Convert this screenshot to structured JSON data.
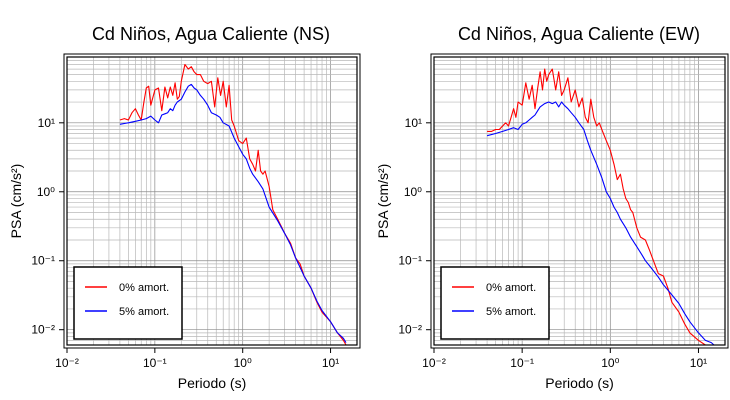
{
  "chart_data": [
    {
      "type": "line",
      "title": "Cd Niños, Agua Caliente (NS)",
      "xlabel": "Periodo (s)",
      "ylabel": "PSA (cm/s²)",
      "xscale": "log",
      "yscale": "log",
      "xlim": [
        0.01,
        20
      ],
      "ylim": [
        0.006,
        90
      ],
      "grid": true,
      "legend_position": "bottom-left",
      "x_tick_labels": [
        "10⁻²",
        "10⁻¹",
        "10⁰",
        "10¹"
      ],
      "y_tick_labels": [
        "10⁻²",
        "10⁻¹",
        "10⁰",
        "10¹"
      ],
      "series": [
        {
          "name": "0% amort.",
          "color": "#ff0000",
          "x": [
            0.04,
            0.045,
            0.05,
            0.055,
            0.06,
            0.065,
            0.07,
            0.075,
            0.08,
            0.085,
            0.09,
            0.1,
            0.11,
            0.12,
            0.13,
            0.14,
            0.15,
            0.16,
            0.17,
            0.18,
            0.19,
            0.2,
            0.22,
            0.24,
            0.26,
            0.28,
            0.3,
            0.33,
            0.36,
            0.4,
            0.44,
            0.48,
            0.52,
            0.56,
            0.6,
            0.65,
            0.7,
            0.75,
            0.8,
            0.9,
            1.0,
            1.1,
            1.2,
            1.3,
            1.4,
            1.5,
            1.6,
            1.7,
            1.8,
            2.0,
            2.2,
            2.5,
            2.8,
            3.0,
            3.5,
            4.0,
            4.5,
            5.0,
            6.0,
            7.0,
            8.0,
            10.0,
            12.0,
            14.0,
            15.0
          ],
          "values": [
            11,
            11.5,
            11,
            14,
            16,
            13,
            11,
            20,
            32,
            34,
            18,
            30,
            32,
            15,
            33,
            23,
            33,
            25,
            38,
            22,
            24,
            40,
            70,
            60,
            65,
            55,
            50,
            50,
            40,
            37,
            40,
            17,
            45,
            25,
            40,
            17,
            35,
            11,
            9,
            5.5,
            5.0,
            6.0,
            3.0,
            2.5,
            2.0,
            4.0,
            2.0,
            1.8,
            2.0,
            1.2,
            0.55,
            0.4,
            0.3,
            0.25,
            0.18,
            0.11,
            0.09,
            0.06,
            0.04,
            0.025,
            0.018,
            0.013,
            0.009,
            0.007,
            0.006
          ]
        },
        {
          "name": "5% amort.",
          "color": "#0000ff",
          "x": [
            0.04,
            0.05,
            0.06,
            0.07,
            0.08,
            0.09,
            0.1,
            0.11,
            0.12,
            0.13,
            0.14,
            0.15,
            0.16,
            0.17,
            0.18,
            0.2,
            0.22,
            0.24,
            0.26,
            0.28,
            0.3,
            0.33,
            0.36,
            0.4,
            0.44,
            0.5,
            0.55,
            0.6,
            0.7,
            0.8,
            0.9,
            1.0,
            1.1,
            1.2,
            1.3,
            1.5,
            1.7,
            2.0,
            2.3,
            2.5,
            3.0,
            3.5,
            4.0,
            5.0,
            6.0,
            7.0,
            8.0,
            10.0,
            12.0,
            14.0,
            15.0
          ],
          "values": [
            9.5,
            10,
            10.5,
            11,
            11.5,
            12.5,
            11,
            10,
            13,
            13.5,
            14,
            16,
            15,
            18,
            20,
            22,
            28,
            34,
            36,
            32,
            30,
            25,
            22,
            18,
            14,
            13,
            12,
            10,
            9,
            6,
            4.5,
            3.5,
            3.0,
            2.2,
            1.8,
            1.4,
            1.1,
            0.6,
            0.45,
            0.38,
            0.25,
            0.17,
            0.11,
            0.06,
            0.04,
            0.026,
            0.019,
            0.013,
            0.009,
            0.0075,
            0.0065
          ]
        }
      ]
    },
    {
      "type": "line",
      "title": "Cd Niños, Agua Caliente (EW)",
      "xlabel": "Periodo (s)",
      "ylabel": "PSA (cm/s²)",
      "xscale": "log",
      "yscale": "log",
      "xlim": [
        0.01,
        20
      ],
      "ylim": [
        0.006,
        90
      ],
      "grid": true,
      "legend_position": "bottom-left",
      "x_tick_labels": [
        "10⁻²",
        "10⁻¹",
        "10⁰",
        "10¹"
      ],
      "y_tick_labels": [
        "10⁻²",
        "10⁻¹",
        "10⁰",
        "10¹"
      ],
      "series": [
        {
          "name": "0% amort.",
          "color": "#ff0000",
          "x": [
            0.04,
            0.045,
            0.05,
            0.055,
            0.06,
            0.065,
            0.07,
            0.075,
            0.08,
            0.085,
            0.09,
            0.1,
            0.11,
            0.12,
            0.13,
            0.14,
            0.15,
            0.16,
            0.17,
            0.18,
            0.19,
            0.2,
            0.22,
            0.24,
            0.26,
            0.28,
            0.3,
            0.33,
            0.36,
            0.4,
            0.44,
            0.48,
            0.52,
            0.56,
            0.6,
            0.65,
            0.7,
            0.75,
            0.8,
            0.9,
            1.0,
            1.1,
            1.2,
            1.3,
            1.4,
            1.5,
            1.6,
            1.7,
            1.8,
            2.0,
            2.2,
            2.5,
            2.8,
            3.0,
            3.5,
            4.0,
            4.5,
            5.0,
            6.0,
            7.0,
            8.0,
            10.0,
            12.0,
            14.0,
            15.0
          ],
          "values": [
            7.5,
            7.5,
            8,
            8,
            9,
            10,
            9,
            12,
            16,
            12,
            20,
            18,
            38,
            22,
            35,
            16,
            32,
            55,
            30,
            60,
            40,
            50,
            60,
            30,
            55,
            25,
            30,
            45,
            20,
            30,
            17,
            23,
            12,
            10,
            22,
            12,
            9,
            10,
            8,
            5.5,
            4.0,
            2.5,
            1.5,
            1.8,
            1.1,
            0.8,
            0.7,
            0.55,
            0.5,
            0.3,
            0.22,
            0.2,
            0.14,
            0.11,
            0.065,
            0.06,
            0.04,
            0.025,
            0.018,
            0.012,
            0.009,
            0.007,
            0.006,
            0.006,
            0.006
          ]
        },
        {
          "name": "5% amort.",
          "color": "#0000ff",
          "x": [
            0.04,
            0.05,
            0.06,
            0.07,
            0.08,
            0.09,
            0.1,
            0.11,
            0.12,
            0.13,
            0.14,
            0.15,
            0.16,
            0.17,
            0.18,
            0.2,
            0.22,
            0.24,
            0.26,
            0.28,
            0.3,
            0.33,
            0.36,
            0.4,
            0.44,
            0.5,
            0.55,
            0.6,
            0.7,
            0.8,
            0.9,
            1.0,
            1.1,
            1.2,
            1.3,
            1.5,
            1.7,
            2.0,
            2.3,
            2.5,
            3.0,
            3.5,
            4.0,
            5.0,
            6.0,
            7.0,
            8.0,
            10.0,
            12.0,
            14.0,
            15.0
          ],
          "values": [
            6.5,
            7,
            7.5,
            8,
            8.5,
            8,
            9.5,
            10,
            11,
            12,
            13,
            15,
            17,
            18,
            19,
            20,
            19,
            20,
            17,
            20,
            18,
            16,
            14,
            12,
            10,
            8,
            5.5,
            4,
            2.5,
            1.6,
            1.0,
            0.8,
            0.6,
            0.5,
            0.4,
            0.3,
            0.22,
            0.16,
            0.12,
            0.1,
            0.075,
            0.058,
            0.045,
            0.032,
            0.024,
            0.017,
            0.013,
            0.009,
            0.007,
            0.0065,
            0.006
          ]
        }
      ]
    }
  ]
}
